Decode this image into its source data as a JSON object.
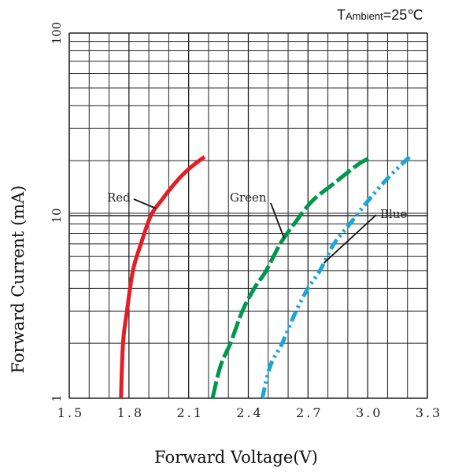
{
  "chart_data": {
    "type": "line",
    "annotation": {
      "prefix": "T",
      "subscript": "Ambient",
      "suffix": "=25℃"
    },
    "xlabel": "Forward Voltage(V)",
    "ylabel": "Forward Current (mA)",
    "x_scale": "linear",
    "y_scale": "log",
    "xlim": [
      1.5,
      3.3
    ],
    "ylim": [
      1,
      100
    ],
    "x_ticks": [
      1.5,
      1.8,
      2.1,
      2.4,
      2.7,
      3.0,
      3.3
    ],
    "x_tick_labels": [
      "1.5",
      "1.8",
      "2.1",
      "2.4",
      "2.7",
      "3.0",
      "3.3"
    ],
    "y_ticks": [
      1,
      10,
      100
    ],
    "y_tick_labels": [
      "1",
      "10",
      "100"
    ],
    "grid": true,
    "series": [
      {
        "name": "Red",
        "color": "#e41e26",
        "style": "solid",
        "x": [
          1.76,
          1.77,
          1.79,
          1.82,
          1.86,
          1.91,
          1.96,
          2.03,
          2.1,
          2.18
        ],
        "y": [
          1,
          2,
          3,
          5,
          7,
          10,
          12,
          15,
          18,
          21
        ]
      },
      {
        "name": "Green",
        "color": "#00964b",
        "style": "dash",
        "x": [
          2.22,
          2.26,
          2.31,
          2.37,
          2.43,
          2.49,
          2.56,
          2.63,
          2.72,
          2.83,
          2.95,
          3.02
        ],
        "y": [
          1,
          1.5,
          2,
          3,
          4,
          5,
          7,
          9,
          12,
          15,
          19,
          21
        ]
      },
      {
        "name": "Blue",
        "color": "#1aa6d8",
        "style": "dashdot",
        "x": [
          2.47,
          2.51,
          2.57,
          2.64,
          2.7,
          2.76,
          2.83,
          2.91,
          3.0,
          3.1,
          3.21
        ],
        "y": [
          1,
          1.5,
          2,
          3,
          4,
          5,
          7,
          9,
          12,
          16,
          21
        ]
      }
    ]
  }
}
